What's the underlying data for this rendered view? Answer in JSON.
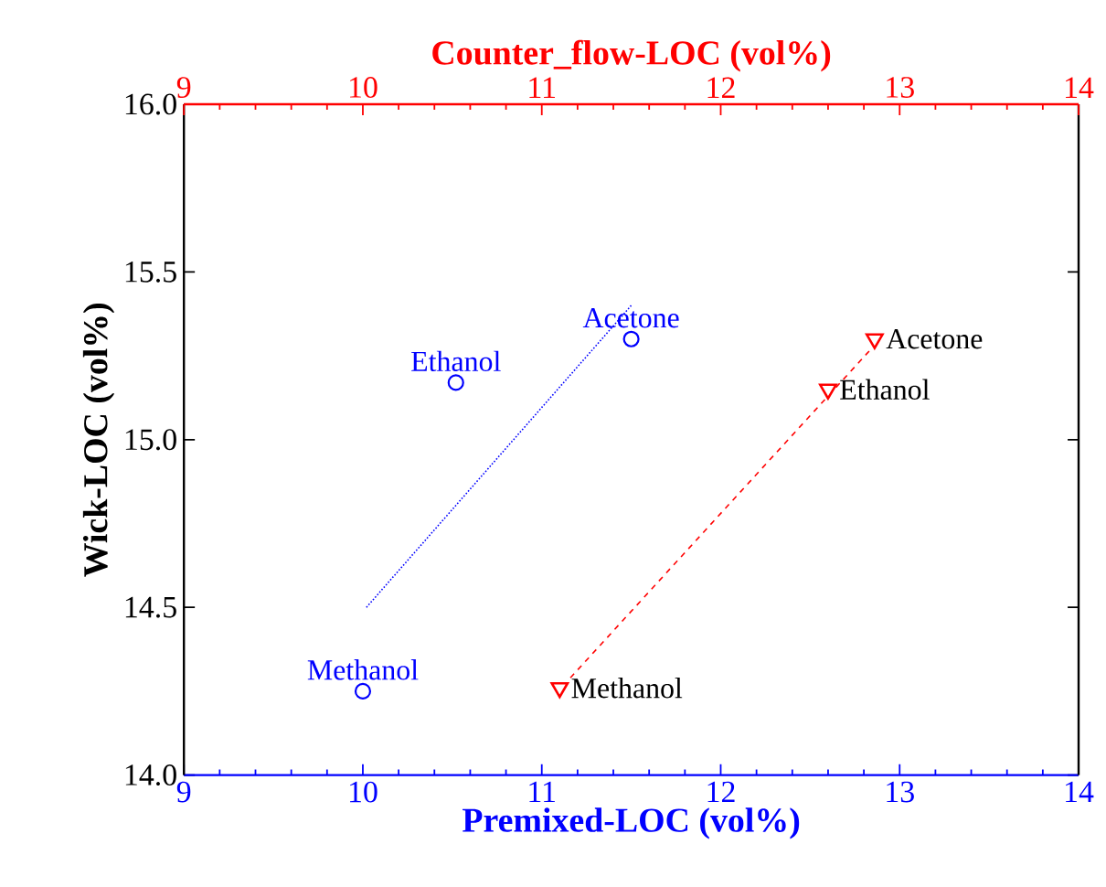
{
  "chart_data": {
    "type": "scatter",
    "xlabel": "Premixed-LOC (vol%)",
    "x2label": "Counter_flow-LOC (vol%)",
    "ylabel": "Wick-LOC (vol%)",
    "xlim": [
      9,
      14
    ],
    "xticks": [
      9,
      10,
      11,
      12,
      13,
      14
    ],
    "x2lim": [
      9,
      14
    ],
    "x2ticks": [
      9,
      10,
      11,
      12,
      13,
      14
    ],
    "ylim": [
      14,
      16
    ],
    "yticks": [
      {
        "value": 14,
        "label": "14.0"
      },
      15.5,
      {
        "value": 15,
        "label": "15.0"
      },
      14.5,
      {
        "value": 16,
        "label": "16.0"
      }
    ],
    "grid": false,
    "series": [
      {
        "type": "line",
        "color": "#0000ff",
        "line_style": "dotted",
        "marker": "none",
        "x": [
          10.02,
          11.5
        ],
        "values": [
          14.5,
          15.4
        ]
      },
      {
        "type": "line",
        "axis": "x2",
        "color": "#ff0000",
        "line_style": "dashed",
        "marker": "none",
        "x": [
          11.16,
          12.84
        ],
        "values": [
          14.29,
          15.27
        ]
      },
      {
        "name": "Methanol",
        "color": "#0000ff",
        "marker": "circle",
        "x": [
          10.0
        ],
        "values": [
          14.25
        ]
      },
      {
        "name": "Ethanol",
        "color": "#0000ff",
        "marker": "circle",
        "x": [
          10.52
        ],
        "values": [
          15.17
        ]
      },
      {
        "name": "Acetone",
        "color": "#0000ff",
        "marker": "circle",
        "x": [
          11.5
        ],
        "values": [
          15.3
        ]
      },
      {
        "name": "Methanol",
        "axis": "x2",
        "color": "#ff0000",
        "marker": "triangle",
        "x": [
          11.1
        ],
        "values": [
          14.26
        ]
      },
      {
        "name": "Ethanol",
        "axis": "x2",
        "color": "#ff0000",
        "marker": "triangle",
        "x": [
          12.6
        ],
        "values": [
          15.15
        ]
      },
      {
        "name": "Acetone",
        "axis": "x2",
        "color": "#ff0000",
        "marker": "triangle",
        "x": [
          12.86
        ],
        "values": [
          15.3
        ]
      }
    ]
  }
}
